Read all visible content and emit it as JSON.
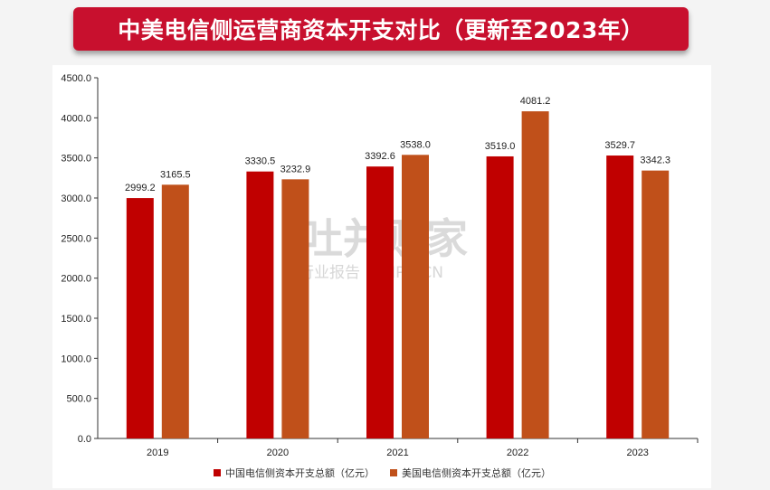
{
  "title": "中美电信侧运营商资本开支对比（更新至2023年）",
  "watermark": {
    "brand": "吐并购家",
    "tagline": "行业报告 IPOIPO.CN"
  },
  "colors": {
    "china": "#c00000",
    "usa": "#c0501a",
    "title_bg": "#c8102e"
  },
  "chart_data": {
    "type": "bar",
    "categories": [
      "2019",
      "2020",
      "2021",
      "2022",
      "2023"
    ],
    "series": [
      {
        "name": "中国电信侧资本开支总额（亿元）",
        "values": [
          2999.2,
          3330.5,
          3392.6,
          3519.0,
          3529.7
        ]
      },
      {
        "name": "美国电信侧资本开支总额（亿元）",
        "values": [
          3165.5,
          3232.9,
          3538.0,
          4081.2,
          3342.3
        ]
      }
    ],
    "data_labels": [
      [
        "2999.2",
        "3330.5",
        "3392.6",
        "3519.0",
        "3529.7"
      ],
      [
        "3165.5",
        "3232.9",
        "3538.0",
        "4081.2",
        "3342.3"
      ]
    ],
    "ylim": [
      0,
      4500
    ],
    "yticks": [
      "0.0",
      "500.0",
      "1000.0",
      "1500.0",
      "2000.0",
      "2500.0",
      "3000.0",
      "3500.0",
      "4000.0",
      "4500.0"
    ],
    "grid": false,
    "legend_position": "bottom",
    "xlabel": "",
    "ylabel": ""
  }
}
